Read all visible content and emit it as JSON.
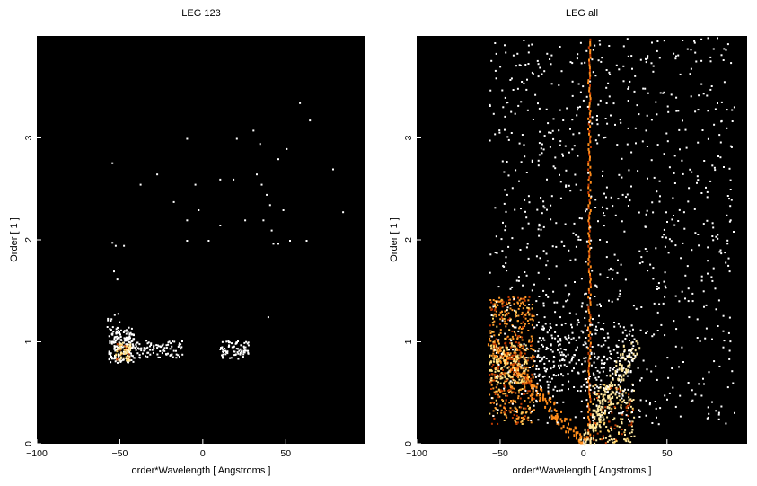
{
  "chart_data": [
    {
      "type": "heatmap",
      "title": "LEG 123",
      "xlabel": "order*Wavelength [ Angstroms ]",
      "ylabel": "Order [ 1 ]",
      "xlim": [
        -100,
        98
      ],
      "ylim": [
        0,
        4
      ],
      "xticks": [
        -100,
        -50,
        0,
        50
      ],
      "yticks": [
        0,
        1,
        2,
        3
      ],
      "background": "#000000",
      "colormap": [
        "#000000",
        "#5a0a00",
        "#c23a00",
        "#ff8c1a",
        "#ffd060",
        "#ffffc8",
        "#ffffff"
      ],
      "clusters": [
        {
          "x": [
            -57,
            -42
          ],
          "y": [
            0.8,
            1.15
          ],
          "count": 160,
          "color": "#ffffff"
        },
        {
          "x": [
            -53,
            -44
          ],
          "y": [
            0.82,
            1.0
          ],
          "count": 70,
          "color": "#ffe8a0"
        },
        {
          "x": [
            -42,
            -12
          ],
          "y": [
            0.85,
            1.02
          ],
          "count": 90,
          "color": "#ffffff"
        },
        {
          "x": [
            10,
            28
          ],
          "y": [
            0.84,
            1.02
          ],
          "count": 75,
          "color": "#ffffff"
        },
        {
          "x": [
            -58,
            -50
          ],
          "y": [
            1.0,
            1.3
          ],
          "count": 20,
          "color": "#ffffff"
        }
      ],
      "points": [
        [
          -55,
          1.98
        ],
        [
          -53,
          1.95
        ],
        [
          -48,
          1.95
        ],
        [
          -54,
          1.7
        ],
        [
          -52,
          1.62
        ],
        [
          -55,
          2.76
        ],
        [
          -38,
          2.55
        ],
        [
          -28,
          2.65
        ],
        [
          -18,
          2.38
        ],
        [
          -10,
          3.0
        ],
        [
          -5,
          2.55
        ],
        [
          -10,
          2.0
        ],
        [
          3,
          2.0
        ],
        [
          10,
          2.6
        ],
        [
          10,
          2.15
        ],
        [
          20,
          3.0
        ],
        [
          18,
          2.6
        ],
        [
          34,
          2.95
        ],
        [
          30,
          3.08
        ],
        [
          32,
          2.65
        ],
        [
          35,
          2.55
        ],
        [
          38,
          2.45
        ],
        [
          40,
          2.35
        ],
        [
          41,
          2.1
        ],
        [
          42,
          1.97
        ],
        [
          45,
          1.97
        ],
        [
          52,
          2.0
        ],
        [
          62,
          2.0
        ],
        [
          58,
          3.35
        ],
        [
          64,
          3.18
        ],
        [
          78,
          2.7
        ],
        [
          84,
          2.28
        ],
        [
          39,
          1.25
        ],
        [
          -10,
          2.2
        ],
        [
          36,
          2.2
        ],
        [
          25,
          2.2
        ],
        [
          48,
          2.3
        ],
        [
          -3,
          2.3
        ],
        [
          45,
          2.8
        ],
        [
          50,
          2.9
        ]
      ]
    },
    {
      "type": "heatmap",
      "title": "LEG all",
      "xlabel": "order*Wavelength [ Angstroms ]",
      "ylabel": "Order [ 1 ]",
      "xlim": [
        -100,
        98
      ],
      "ylim": [
        0,
        4
      ],
      "xticks": [
        -100,
        -50,
        0,
        50
      ],
      "yticks": [
        0,
        1,
        2,
        3
      ],
      "background": "#000000",
      "colormap": [
        "#000000",
        "#5a0a00",
        "#c23a00",
        "#ff8c1a",
        "#ffd060",
        "#ffffc8",
        "#ffffff"
      ],
      "features": [
        {
          "name": "zeroth-order line",
          "x": 3,
          "y": [
            0.0,
            4.0
          ],
          "color": "#ff8c1a"
        },
        {
          "name": "positive arm",
          "x": [
            0,
            30
          ],
          "y": [
            0.0,
            1.0
          ],
          "color": "#ffe8a0"
        },
        {
          "name": "negative arm",
          "x": [
            0,
            -55
          ],
          "y": [
            0.0,
            1.0
          ],
          "color": "#ff8c1a"
        }
      ],
      "clusters": [
        {
          "x": [
            -57,
            -30
          ],
          "y": [
            0.2,
            1.45
          ],
          "count": 520,
          "color": "#ff9a2a"
        },
        {
          "x": [
            -57,
            -35
          ],
          "y": [
            0.6,
            1.0
          ],
          "count": 220,
          "color": "#ffe28a"
        },
        {
          "x": [
            5,
            30
          ],
          "y": [
            0.0,
            0.6
          ],
          "count": 200,
          "color": "#ffe8a0"
        },
        {
          "x": [
            -30,
            30
          ],
          "y": [
            0.5,
            1.2
          ],
          "count": 260,
          "color": "#ffffff"
        },
        {
          "x": [
            -57,
            90
          ],
          "y": [
            0.2,
            4.0
          ],
          "count": 900,
          "color": "#ffffff"
        }
      ]
    }
  ]
}
